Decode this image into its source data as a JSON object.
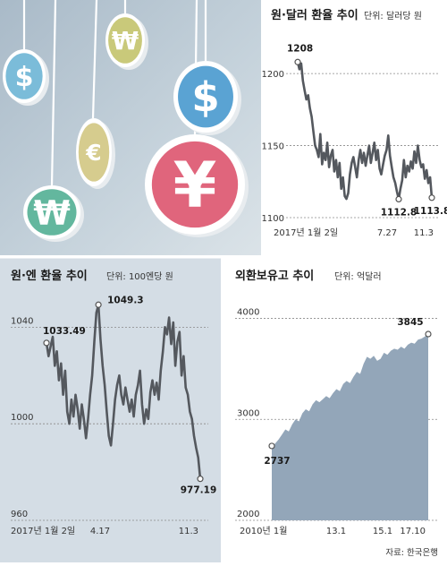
{
  "illustration": {
    "coins": [
      {
        "symbol": "$",
        "color": "#7bbcd9",
        "icon": "dollar-coin-icon"
      },
      {
        "symbol": "₩",
        "color": "#c9c97a",
        "icon": "won-coin-icon"
      },
      {
        "symbol": "€",
        "color": "#d6cc8e",
        "icon": "euro-coin-icon"
      },
      {
        "symbol": "₩",
        "color": "#63b79e",
        "icon": "won-coin-icon"
      },
      {
        "symbol": "$",
        "color": "#5aa3d3",
        "icon": "dollar-coin-icon"
      },
      {
        "symbol": "¥",
        "color": "#e0657c",
        "icon": "yen-coin-icon"
      }
    ]
  },
  "chart_data": [
    {
      "type": "line",
      "title": "원·달러 환율 추이",
      "unit": "단위: 달러당 원",
      "x_labels": [
        "2017년 1월 2일",
        "7.27",
        "11.3"
      ],
      "y_ticks": [
        1100,
        1150,
        1200
      ],
      "ylim": [
        1100,
        1215
      ],
      "annotations": [
        {
          "label": "1208",
          "value": 1208
        },
        {
          "label": "1112.8",
          "value": 1112.8
        },
        {
          "label": "1113.8",
          "value": 1113.8
        }
      ],
      "values": [
        1208,
        1203,
        1207,
        1195,
        1188,
        1182,
        1185,
        1176,
        1170,
        1160,
        1150,
        1147,
        1142,
        1158,
        1137,
        1145,
        1140,
        1152,
        1135,
        1143,
        1147,
        1132,
        1140,
        1128,
        1138,
        1120,
        1128,
        1115,
        1113,
        1117,
        1130,
        1138,
        1142,
        1135,
        1128,
        1140,
        1147,
        1138,
        1145,
        1136,
        1143,
        1150,
        1138,
        1145,
        1152,
        1140,
        1147,
        1134,
        1130,
        1137,
        1143,
        1147,
        1157,
        1143,
        1135,
        1128,
        1124,
        1118,
        1112.8,
        1120,
        1126,
        1140,
        1128,
        1136,
        1132,
        1139,
        1134,
        1146,
        1138,
        1150,
        1140,
        1135,
        1137,
        1127,
        1133,
        1124,
        1128,
        1113.8
      ],
      "series_color": "#54585e",
      "area_color": "#e6e6e6"
    },
    {
      "type": "line",
      "title": "원·엔 환율 추이",
      "unit": "단위: 100엔당 원",
      "x_labels": [
        "2017년 1월 2일",
        "4.17",
        "11.3"
      ],
      "y_ticks": [
        960,
        1000,
        1040
      ],
      "ylim": [
        960,
        1052
      ],
      "annotations": [
        {
          "label": "1033.49",
          "value": 1033.49
        },
        {
          "label": "1049.3",
          "value": 1049.3
        },
        {
          "label": "977.19",
          "value": 977.19
        }
      ],
      "values": [
        1033.49,
        1028,
        1032,
        1036,
        1024,
        1030,
        1018,
        1025,
        1012,
        1022,
        1005,
        1000,
        1010,
        1003,
        1012,
        1006,
        998,
        1008,
        1002,
        994,
        1002,
        1012,
        1020,
        1034,
        1046,
        1049.3,
        1035,
        1024,
        1016,
        1005,
        995,
        991,
        1000,
        1010,
        1016,
        1020,
        1012,
        1008,
        1015,
        1010,
        1005,
        1010,
        1003,
        1012,
        1016,
        1022,
        1008,
        1000,
        1006,
        1002,
        1013,
        1018,
        1012,
        1017,
        1010,
        1022,
        1030,
        1040,
        1037,
        1044,
        1033,
        1042,
        1024,
        1034,
        1038,
        1020,
        1028,
        1015,
        1012,
        1005,
        1002,
        995,
        990,
        986,
        977.19
      ],
      "series_color": "#54585e",
      "area_color": "#c9d3dd"
    },
    {
      "type": "area",
      "title": "외환보유고 추이",
      "unit": "단위: 억달러",
      "x_labels": [
        "2010년 1월",
        "13.1",
        "15.1",
        "17.10"
      ],
      "y_ticks": [
        2000,
        3000,
        4000
      ],
      "ylim": [
        2000,
        4200
      ],
      "annotations": [
        {
          "label": "2737",
          "value": 2737
        },
        {
          "label": "3845",
          "value": 3845
        }
      ],
      "values": [
        2737,
        2760,
        2800,
        2850,
        2900,
        2880,
        2950,
        3000,
        2980,
        3060,
        3100,
        3080,
        3150,
        3190,
        3170,
        3200,
        3230,
        3210,
        3260,
        3300,
        3280,
        3350,
        3380,
        3360,
        3420,
        3470,
        3450,
        3550,
        3620,
        3600,
        3630,
        3580,
        3600,
        3660,
        3640,
        3680,
        3700,
        3690,
        3720,
        3700,
        3740,
        3760,
        3750,
        3790,
        3800,
        3820,
        3845
      ],
      "series_color": "#93a6b9",
      "area_color": "#93a6b9"
    }
  ],
  "source": "자료: 한국은행"
}
